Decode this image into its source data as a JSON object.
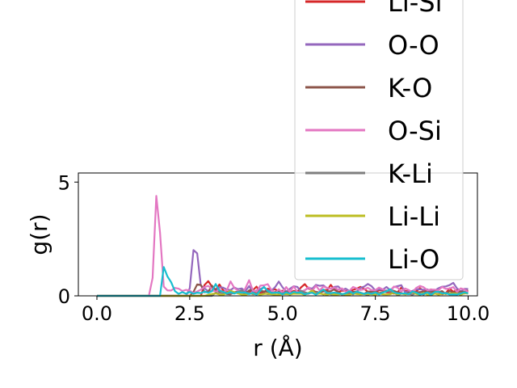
{
  "chart_data": {
    "type": "line",
    "xlabel": "r (Å)",
    "ylabel": "g(r)",
    "xlim": [
      -0.5,
      10.25
    ],
    "ylim": [
      0,
      5.4
    ],
    "xticks": [
      0.0,
      2.5,
      5.0,
      7.5,
      10.0
    ],
    "xtick_labels": [
      "0.0",
      "2.5",
      "5.0",
      "7.5",
      "10.0"
    ],
    "yticks": [
      0,
      5
    ],
    "ytick_labels": [
      "0",
      "5"
    ],
    "grid": false,
    "legend_position": "upper-right",
    "series": [
      {
        "name": "Li-Si",
        "color": "#d62728",
        "peaks": [
          [
            3.0,
            0.75
          ],
          [
            3.3,
            0.5
          ],
          [
            4.3,
            0.35
          ],
          [
            5.6,
            0.4
          ],
          [
            6.3,
            0.4
          ],
          [
            7.1,
            0.35
          ],
          [
            8.2,
            0.35
          ],
          [
            9.1,
            0.3
          ]
        ],
        "base": 0.22,
        "start": 2.85,
        "noise": 0.1
      },
      {
        "name": "O-O",
        "color": "#9467bd",
        "peaks": [
          [
            2.65,
            2.7
          ],
          [
            3.5,
            0.4
          ],
          [
            4.9,
            0.65
          ],
          [
            5.3,
            0.45
          ],
          [
            6.0,
            0.55
          ],
          [
            7.3,
            0.55
          ],
          [
            8.1,
            0.5
          ],
          [
            9.6,
            0.6
          ]
        ],
        "base": 0.3,
        "start": 2.5,
        "noise": 0.12
      },
      {
        "name": "K-O",
        "color": "#8c564b",
        "peaks": [
          [
            2.75,
            0.65
          ],
          [
            3.1,
            0.45
          ],
          [
            4.2,
            0.3
          ],
          [
            6.4,
            0.3
          ],
          [
            8.0,
            0.25
          ]
        ],
        "base": 0.15,
        "start": 2.6,
        "noise": 0.08
      },
      {
        "name": "O-Si",
        "color": "#e377c2",
        "peaks": [
          [
            1.63,
            5.1
          ],
          [
            3.6,
            0.6
          ],
          [
            4.1,
            0.6
          ],
          [
            4.6,
            0.55
          ],
          [
            5.9,
            0.45
          ],
          [
            6.8,
            0.4
          ],
          [
            8.7,
            0.4
          ]
        ],
        "base": 0.28,
        "start": 1.45,
        "noise": 0.12
      },
      {
        "name": "K-Li",
        "color": "#7f7f7f",
        "peaks": [
          [
            3.9,
            0.3
          ],
          [
            5.5,
            0.25
          ],
          [
            7.8,
            0.25
          ]
        ],
        "base": 0.1,
        "start": 3.2,
        "noise": 0.06
      },
      {
        "name": "Li-Li",
        "color": "#bcbd22",
        "peaks": [
          [
            3.6,
            0.25
          ],
          [
            5.8,
            0.2
          ],
          [
            8.5,
            0.2
          ]
        ],
        "base": 0.08,
        "start": 3.0,
        "noise": 0.05
      },
      {
        "name": "Li-O",
        "color": "#17becf",
        "peaks": [
          [
            1.82,
            1.35
          ],
          [
            1.96,
            0.6
          ],
          [
            3.2,
            0.45
          ],
          [
            4.5,
            0.45
          ],
          [
            6.1,
            0.35
          ],
          [
            7.9,
            0.3
          ]
        ],
        "base": 0.12,
        "start": 1.72,
        "noise": 0.07
      }
    ]
  }
}
